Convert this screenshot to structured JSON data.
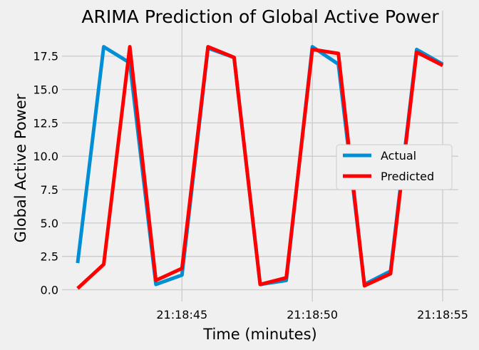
{
  "chart_data": {
    "type": "line",
    "title": "ARIMA Prediction of Global Active Power",
    "xlabel": "Time (minutes)",
    "ylabel": "Global Active Power",
    "x_tick_labels": [
      "21:18:45",
      "21:18:50",
      "21:18:55"
    ],
    "x_tick_values": [
      4,
      9,
      14
    ],
    "xlim": [
      -0.6,
      14.6
    ],
    "ylim": [
      -0.88,
      19.3
    ],
    "y_ticks": [
      0.0,
      2.5,
      5.0,
      7.5,
      10.0,
      12.5,
      15.0,
      17.5
    ],
    "y_tick_labels": [
      "0.0",
      "2.5",
      "5.0",
      "7.5",
      "10.0",
      "12.5",
      "15.0",
      "17.5"
    ],
    "x": [
      0,
      1,
      2,
      3,
      4,
      5,
      6,
      7,
      8,
      9,
      10,
      11,
      12,
      13,
      14
    ],
    "series": [
      {
        "name": "Actual",
        "color": "#008fd5",
        "values": [
          2.0,
          18.2,
          17.0,
          0.4,
          1.1,
          18.1,
          17.4,
          0.4,
          0.7,
          18.2,
          16.9,
          0.4,
          1.4,
          18.0,
          16.9
        ]
      },
      {
        "name": "Predicted",
        "color": "#ff0000",
        "values": [
          0.1,
          1.9,
          18.2,
          0.7,
          1.6,
          18.2,
          17.4,
          0.4,
          0.9,
          18.0,
          17.7,
          0.3,
          1.2,
          17.8,
          16.8
        ]
      }
    ],
    "grid": true,
    "legend_position": "center-right",
    "background": "#f0f0f0",
    "grid_color": "#cbcbcb"
  }
}
